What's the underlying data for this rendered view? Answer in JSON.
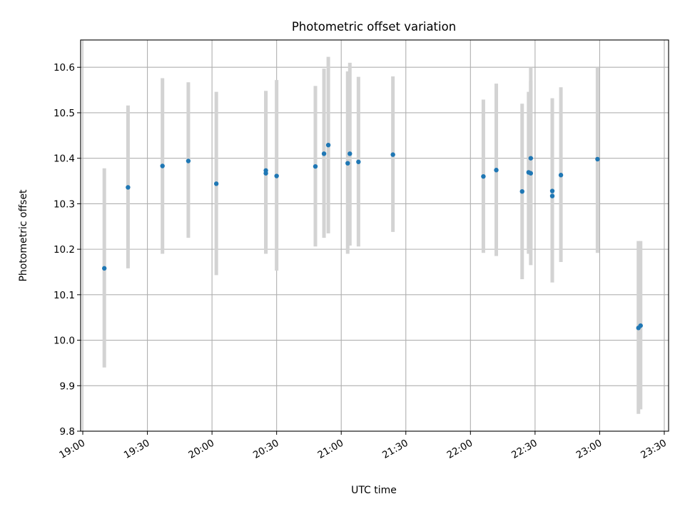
{
  "chart_data": {
    "type": "scatter",
    "title": "Photometric offset variation",
    "xlabel": "UTC time",
    "ylabel": "Photometric offset",
    "grid": true,
    "legend": "none",
    "colors": {
      "point": "#1f77b4",
      "errorbar": "#d3d3d3"
    },
    "xlim": [
      "18:59",
      "23:32"
    ],
    "ylim": [
      9.8,
      10.66
    ],
    "x_ticks": [
      "19:00",
      "19:30",
      "20:00",
      "20:30",
      "21:00",
      "21:30",
      "22:00",
      "22:30",
      "23:00",
      "23:30"
    ],
    "y_ticks": [
      "9.8",
      "9.9",
      "10.0",
      "10.1",
      "10.2",
      "10.3",
      "10.4",
      "10.5",
      "10.6"
    ],
    "points": [
      {
        "x": "19:10",
        "y": 10.158,
        "err_low": 9.94,
        "err_high": 10.378
      },
      {
        "x": "19:21",
        "y": 10.336,
        "err_low": 10.158,
        "err_high": 10.516
      },
      {
        "x": "19:37",
        "y": 10.383,
        "err_low": 10.19,
        "err_high": 10.576
      },
      {
        "x": "19:49",
        "y": 10.394,
        "err_low": 10.225,
        "err_high": 10.567
      },
      {
        "x": "20:02",
        "y": 10.344,
        "err_low": 10.143,
        "err_high": 10.546
      },
      {
        "x": "20:25",
        "y": 10.367,
        "err_low": 10.19,
        "err_high": 10.548
      },
      {
        "x": "20:25",
        "y": 10.373,
        "err_low": 10.19,
        "err_high": 10.548
      },
      {
        "x": "20:30",
        "y": 10.361,
        "err_low": 10.153,
        "err_high": 10.572
      },
      {
        "x": "20:48",
        "y": 10.382,
        "err_low": 10.206,
        "err_high": 10.559
      },
      {
        "x": "20:52",
        "y": 10.41,
        "err_low": 10.225,
        "err_high": 10.597
      },
      {
        "x": "20:54",
        "y": 10.429,
        "err_low": 10.235,
        "err_high": 10.623
      },
      {
        "x": "21:03",
        "y": 10.389,
        "err_low": 10.19,
        "err_high": 10.591
      },
      {
        "x": "21:04",
        "y": 10.41,
        "err_low": 10.208,
        "err_high": 10.61
      },
      {
        "x": "21:08",
        "y": 10.392,
        "err_low": 10.206,
        "err_high": 10.579
      },
      {
        "x": "21:24",
        "y": 10.408,
        "err_low": 10.238,
        "err_high": 10.58
      },
      {
        "x": "22:06",
        "y": 10.36,
        "err_low": 10.192,
        "err_high": 10.529
      },
      {
        "x": "22:12",
        "y": 10.374,
        "err_low": 10.185,
        "err_high": 10.564
      },
      {
        "x": "22:24",
        "y": 10.327,
        "err_low": 10.134,
        "err_high": 10.52
      },
      {
        "x": "22:27",
        "y": 10.369,
        "err_low": 10.19,
        "err_high": 10.546
      },
      {
        "x": "22:28",
        "y": 10.4,
        "err_low": 10.2,
        "err_high": 10.6
      },
      {
        "x": "22:28",
        "y": 10.367,
        "err_low": 10.165,
        "err_high": 10.57
      },
      {
        "x": "22:38",
        "y": 10.328,
        "err_low": 10.127,
        "err_high": 10.532
      },
      {
        "x": "22:38",
        "y": 10.317,
        "err_low": 10.127,
        "err_high": 10.51
      },
      {
        "x": "22:42",
        "y": 10.363,
        "err_low": 10.172,
        "err_high": 10.556
      },
      {
        "x": "22:59",
        "y": 10.398,
        "err_low": 10.192,
        "err_high": 10.6
      },
      {
        "x": "23:18",
        "y": 10.027,
        "err_low": 9.838,
        "err_high": 10.218
      },
      {
        "x": "23:19",
        "y": 10.032,
        "err_low": 9.848,
        "err_high": 10.218
      }
    ]
  }
}
